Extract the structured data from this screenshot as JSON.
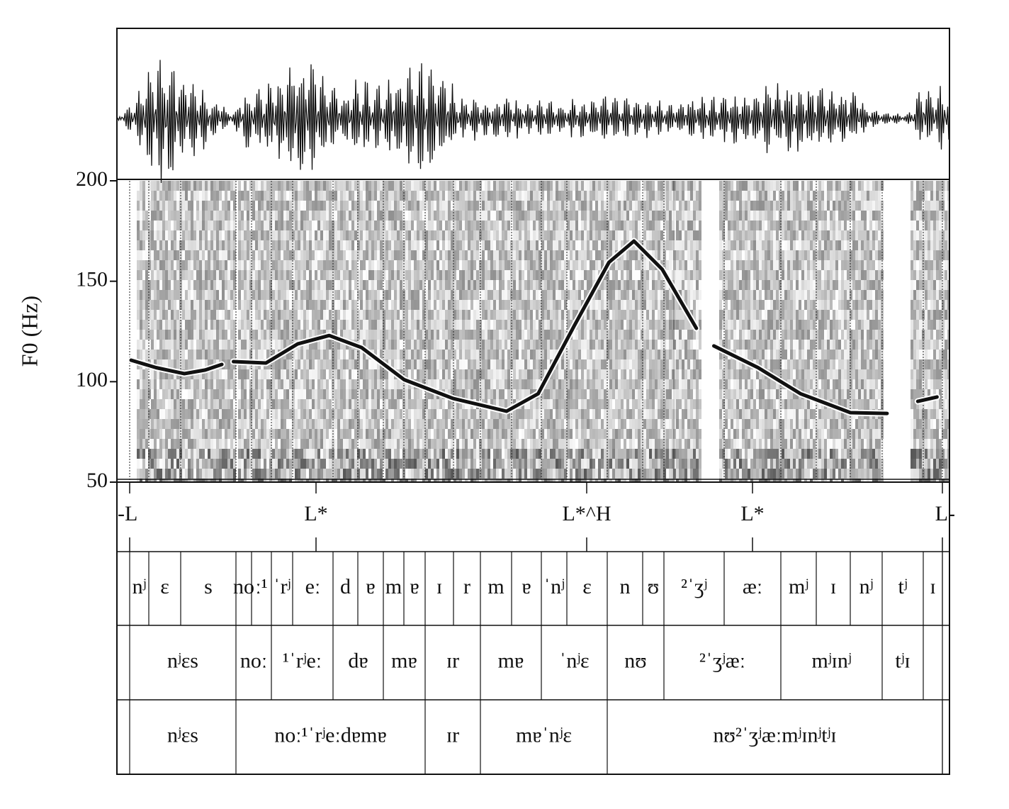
{
  "chart_data": {
    "type": "line",
    "ylabel": "F0 (Hz)",
    "ylim": [
      50,
      200
    ],
    "yticks": [
      50,
      100,
      150,
      200
    ],
    "xlim": [
      0,
      1
    ],
    "x": [
      0.017,
      0.047,
      0.081,
      0.106,
      0.126,
      0.133,
      0.14,
      0.179,
      0.217,
      0.255,
      0.294,
      0.345,
      0.404,
      0.468,
      0.506,
      0.549,
      0.591,
      0.621,
      0.655,
      0.696,
      0.706,
      0.717,
      0.77,
      0.821,
      0.881,
      0.925,
      0.945,
      0.962,
      0.985
    ],
    "values": [
      110.7,
      107,
      104,
      105.8,
      108.6,
      null,
      110,
      109.3,
      118.8,
      123,
      117,
      101,
      91.6,
      85.3,
      94,
      127.6,
      159.4,
      170,
      155.9,
      126.6,
      null,
      117.8,
      107,
      94,
      84.6,
      84.2,
      null,
      90.2,
      92.4
    ],
    "color": "#111111"
  },
  "tiers": {
    "tones": [
      "-L",
      "L*",
      "L*^H",
      "L*",
      "L-"
    ],
    "segments": [
      "nʲ",
      "ɛ",
      "s",
      "no",
      "ː¹",
      "ˈrʲ",
      "eː",
      "d",
      "ɐ",
      "m",
      "ɐ",
      "ɪ",
      "r",
      "m",
      "ɐ",
      "ˈnʲ",
      "ɛ",
      "n",
      "ʊ",
      "²ˈʒʲ",
      "æː",
      "mʲ",
      "ɪ",
      "nʲ",
      "tʲ",
      "ɪ"
    ],
    "syllables": [
      "nʲɛs",
      "noː",
      "¹ˈrʲeː",
      "dɐ",
      "mɐ",
      "ɪr",
      "mɐ",
      "ˈnʲɛ",
      "nʊ",
      "²ˈʒʲæː",
      "mʲɪnʲ",
      "tʲɪ"
    ],
    "words": [
      "nʲɛs",
      "noː¹ˈrʲeːdɐmɐ",
      "ɪr",
      "mɐˈnʲɛ",
      "nʊ²ˈʒʲæːmʲɪnʲtʲɪ"
    ]
  }
}
